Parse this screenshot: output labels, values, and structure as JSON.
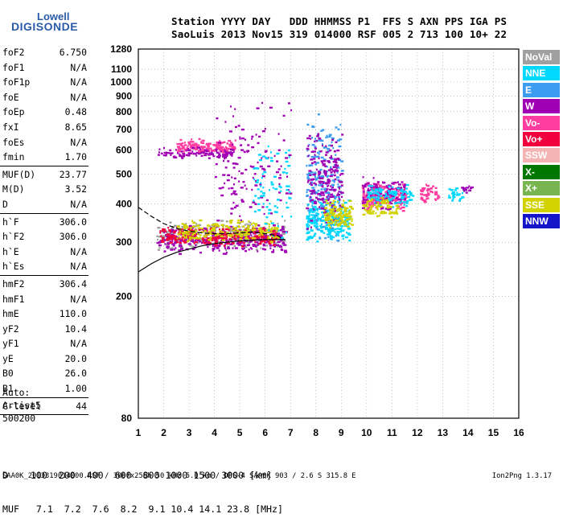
{
  "logo": {
    "line1": "Lowell",
    "line2": "DIGISONDE"
  },
  "header": {
    "row1": "Station YYYY DAY   DDD HHMMSS P1  FFS S AXN PPS IGA PS",
    "row2": "SaoLuis 2013 Nov15 319 014000 RSF 005 2 713 100 10+ 22"
  },
  "params": [
    {
      "label": "foF2",
      "value": "6.750"
    },
    {
      "label": "foF1",
      "value": "N/A"
    },
    {
      "label": "foF1p",
      "value": "N/A"
    },
    {
      "label": "foE",
      "value": "N/A"
    },
    {
      "label": "foEp",
      "value": "0.48"
    },
    {
      "label": "fxI",
      "value": "8.65"
    },
    {
      "label": "foEs",
      "value": "N/A"
    },
    {
      "label": "fmin",
      "value": "1.70",
      "sep": true
    },
    {
      "label": "MUF(D)",
      "value": "23.77"
    },
    {
      "label": "M(D)",
      "value": "3.52"
    },
    {
      "label": "D",
      "value": "N/A",
      "sep": true
    },
    {
      "label": "h`F",
      "value": "306.0"
    },
    {
      "label": "h`F2",
      "value": "306.0"
    },
    {
      "label": "h`E",
      "value": "N/A"
    },
    {
      "label": "h`Es",
      "value": "N/A",
      "sep": true
    },
    {
      "label": "hmF2",
      "value": "306.4"
    },
    {
      "label": "hmF1",
      "value": "N/A"
    },
    {
      "label": "hmE",
      "value": "110.0"
    },
    {
      "label": "yF2",
      "value": "10.4"
    },
    {
      "label": "yF1",
      "value": "N/A"
    },
    {
      "label": "yE",
      "value": "20.0"
    },
    {
      "label": "B0",
      "value": "26.0"
    },
    {
      "label": "B1",
      "value": "1.00",
      "sep": true
    },
    {
      "label": "C-level",
      "value": "44",
      "sep": true
    }
  ],
  "auto": {
    "line1": "Auto:",
    "line2": "Artist5",
    "line3": "500200"
  },
  "muf_table": {
    "row1": "D    100  200  400  600  800 1000 1500 3000 [km]",
    "row2": "MUF   7.1  7.2  7.6  8.2  9.1 10.4 14.1 23.8 [MHz]"
  },
  "footer": {
    "left": "SAA0K_2013319014000.RSF / 300fx256h 50 kHz 5.0 km / DPS-4 SAA0K 903 / 2.6 S 315.8 E",
    "right": "Ion2Png 1.3.17"
  },
  "legend": [
    {
      "label": "NoVal",
      "color": "#a0a0a0"
    },
    {
      "label": "NNE",
      "color": "#00d8ff"
    },
    {
      "label": "E",
      "color": "#3c9cf0"
    },
    {
      "label": "W",
      "color": "#a000b4"
    },
    {
      "label": "Vo-",
      "color": "#ff3ca0"
    },
    {
      "label": "Vo+",
      "color": "#f0003c"
    },
    {
      "label": "SSW",
      "color": "#f4b4b4"
    },
    {
      "label": "X-",
      "color": "#007800"
    },
    {
      "label": "X+",
      "color": "#78b450"
    },
    {
      "label": "SSE",
      "color": "#d2d200"
    },
    {
      "label": "NNW",
      "color": "#1414c8"
    }
  ],
  "chart_data": {
    "type": "scatter",
    "title": "",
    "xlabel": "",
    "ylabel": "",
    "xlim": [
      1,
      16
    ],
    "ylim": [
      80,
      1280
    ],
    "y_scale": "log",
    "x_ticks": [
      1,
      2,
      3,
      4,
      5,
      6,
      7,
      8,
      9,
      10,
      11,
      12,
      13,
      14,
      15,
      16
    ],
    "y_ticks": [
      80,
      200,
      300,
      400,
      500,
      600,
      700,
      800,
      900,
      1000,
      1100,
      1280
    ],
    "grid": true,
    "clusters": [
      {
        "name": "NoVal",
        "x": [
          1.7,
          6.8
        ],
        "y": [
          280,
          360
        ],
        "n": 260
      },
      {
        "name": "W",
        "x": [
          1.7,
          6.8
        ],
        "y": [
          275,
          345
        ],
        "n": 320
      },
      {
        "name": "Vo+",
        "x": [
          1.8,
          6.5
        ],
        "y": [
          290,
          340
        ],
        "n": 240
      },
      {
        "name": "SSE",
        "x": [
          2.5,
          6.5
        ],
        "y": [
          300,
          360
        ],
        "n": 200
      },
      {
        "name": "Vo-",
        "x": [
          2.5,
          4.8
        ],
        "y": [
          580,
          660
        ],
        "n": 160
      },
      {
        "name": "W",
        "x": [
          1.7,
          4.8
        ],
        "y": [
          560,
          620
        ],
        "n": 90
      },
      {
        "name": "NNE",
        "x": [
          7.6,
          9.3
        ],
        "y": [
          300,
          420
        ],
        "n": 260
      },
      {
        "name": "E",
        "x": [
          7.6,
          9.0
        ],
        "y": [
          300,
          800
        ],
        "n": 200
      },
      {
        "name": "W",
        "x": [
          7.6,
          9.0
        ],
        "y": [
          320,
          700
        ],
        "n": 200
      },
      {
        "name": "SSE",
        "x": [
          8.3,
          9.4
        ],
        "y": [
          330,
          420
        ],
        "n": 120
      },
      {
        "name": "Vo-",
        "x": [
          9.8,
          11.5
        ],
        "y": [
          380,
          480
        ],
        "n": 200
      },
      {
        "name": "W",
        "x": [
          9.8,
          11.5
        ],
        "y": [
          380,
          500
        ],
        "n": 120
      },
      {
        "name": "NNE",
        "x": [
          10.0,
          11.8
        ],
        "y": [
          390,
          470
        ],
        "n": 100
      },
      {
        "name": "SSE",
        "x": [
          9.8,
          11.3
        ],
        "y": [
          360,
          430
        ],
        "n": 70
      },
      {
        "name": "Vo-",
        "x": [
          12.1,
          12.8
        ],
        "y": [
          400,
          470
        ],
        "n": 45
      },
      {
        "name": "NNE",
        "x": [
          13.2,
          13.8
        ],
        "y": [
          400,
          460
        ],
        "n": 30
      },
      {
        "name": "W",
        "x": [
          13.7,
          14.1
        ],
        "y": [
          430,
          470
        ],
        "n": 12
      },
      {
        "name": "W",
        "x": [
          4.0,
          7.0
        ],
        "y": [
          300,
          900
        ],
        "n": 140
      },
      {
        "name": "NNE",
        "x": [
          5.5,
          7.0
        ],
        "y": [
          300,
          700
        ],
        "n": 80
      }
    ],
    "profile_curve": {
      "x": [
        1,
        1.5,
        2,
        2.5,
        3,
        3.5,
        4,
        5,
        6,
        6.8
      ],
      "y": [
        240,
        255,
        268,
        278,
        285,
        292,
        297,
        303,
        306,
        306
      ]
    },
    "virtual_trace": {
      "x": [
        1,
        1.5,
        2,
        2.5,
        3,
        3.5,
        4,
        4.5,
        5,
        5.5,
        6,
        6.5,
        6.75
      ],
      "y": [
        390,
        365,
        345,
        333,
        326,
        322,
        320,
        320,
        322,
        324,
        320,
        315,
        306
      ]
    }
  }
}
